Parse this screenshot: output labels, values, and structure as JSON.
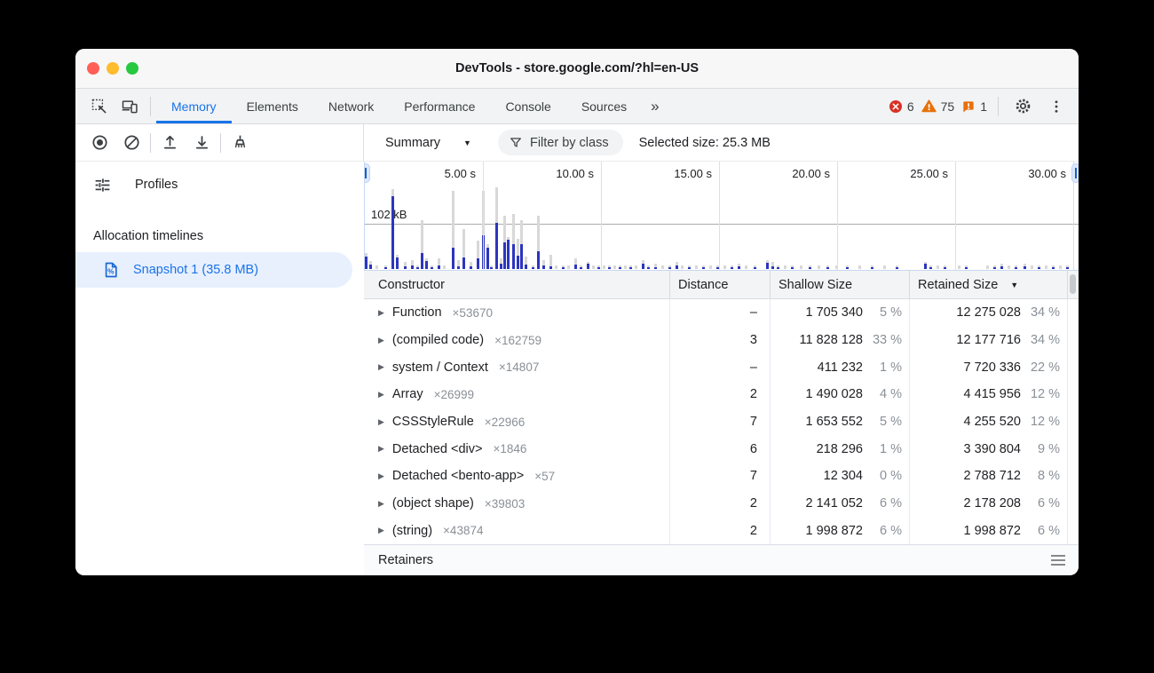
{
  "window": {
    "title": "DevTools - store.google.com/?hl=en-US"
  },
  "tabs": {
    "items": [
      {
        "label": "Memory",
        "active": true
      },
      {
        "label": "Elements",
        "active": false
      },
      {
        "label": "Network",
        "active": false
      },
      {
        "label": "Performance",
        "active": false
      },
      {
        "label": "Console",
        "active": false
      },
      {
        "label": "Sources",
        "active": false
      }
    ],
    "more_label": "»",
    "badges": {
      "errors": "6",
      "warnings": "75",
      "issues": "1"
    }
  },
  "toolbar": {
    "icons": [
      "record-icon",
      "clear-icon",
      "load-profile-icon",
      "save-profile-icon",
      "clear-all-profiles-icon"
    ],
    "mode_label": "Summary",
    "mode_caret": "▼",
    "filter_label": "Filter by class",
    "selected_size_label": "Selected size: 25.3 MB"
  },
  "sidebar": {
    "profiles_label": "Profiles",
    "section_label": "Allocation timelines",
    "snapshot_label": "Snapshot 1 (35.8 MB)"
  },
  "timeline": {
    "ticks": [
      "5.00 s",
      "10.00 s",
      "15.00 s",
      "20.00 s",
      "25.00 s",
      "30.00 s"
    ],
    "tick_spacing_px": 133,
    "y_gridline_label": "102 kB",
    "bars": [
      [
        0,
        18,
        14
      ],
      [
        5,
        9,
        5
      ],
      [
        12,
        4,
        0
      ],
      [
        22,
        4,
        2
      ],
      [
        30,
        90,
        82
      ],
      [
        35,
        16,
        13
      ],
      [
        44,
        8,
        3
      ],
      [
        52,
        10,
        4
      ],
      [
        58,
        4,
        2
      ],
      [
        63,
        55,
        18
      ],
      [
        68,
        12,
        9
      ],
      [
        74,
        4,
        2
      ],
      [
        82,
        12,
        4
      ],
      [
        88,
        4,
        0
      ],
      [
        98,
        88,
        24
      ],
      [
        104,
        10,
        3
      ],
      [
        110,
        45,
        13
      ],
      [
        118,
        8,
        3
      ],
      [
        126,
        32,
        12
      ],
      [
        132,
        88,
        38
      ],
      [
        137,
        28,
        24
      ],
      [
        141,
        4,
        2
      ],
      [
        147,
        92,
        52
      ],
      [
        152,
        12,
        6
      ],
      [
        156,
        60,
        30
      ],
      [
        160,
        36,
        33
      ],
      [
        166,
        62,
        28
      ],
      [
        171,
        34,
        15
      ],
      [
        175,
        55,
        28
      ],
      [
        180,
        14,
        5
      ],
      [
        188,
        4,
        2
      ],
      [
        194,
        60,
        20
      ],
      [
        200,
        10,
        4
      ],
      [
        208,
        16,
        3
      ],
      [
        214,
        4,
        0
      ],
      [
        222,
        4,
        2
      ],
      [
        228,
        4,
        0
      ],
      [
        236,
        12,
        5
      ],
      [
        242,
        4,
        2
      ],
      [
        250,
        8,
        6
      ],
      [
        256,
        4,
        0
      ],
      [
        262,
        4,
        2
      ],
      [
        268,
        4,
        0
      ],
      [
        274,
        4,
        2
      ],
      [
        280,
        4,
        0
      ],
      [
        286,
        4,
        2
      ],
      [
        292,
        4,
        0
      ],
      [
        298,
        4,
        2
      ],
      [
        304,
        4,
        0
      ],
      [
        312,
        10,
        6
      ],
      [
        318,
        4,
        2
      ],
      [
        326,
        6,
        2
      ],
      [
        334,
        4,
        0
      ],
      [
        342,
        4,
        2
      ],
      [
        350,
        8,
        4
      ],
      [
        356,
        4,
        0
      ],
      [
        364,
        4,
        2
      ],
      [
        372,
        4,
        0
      ],
      [
        380,
        4,
        2
      ],
      [
        388,
        4,
        0
      ],
      [
        396,
        4,
        2
      ],
      [
        404,
        4,
        0
      ],
      [
        412,
        4,
        2
      ],
      [
        420,
        6,
        3
      ],
      [
        428,
        4,
        0
      ],
      [
        438,
        4,
        2
      ],
      [
        452,
        10,
        7
      ],
      [
        458,
        8,
        3
      ],
      [
        464,
        4,
        2
      ],
      [
        472,
        4,
        0
      ],
      [
        480,
        4,
        2
      ],
      [
        490,
        4,
        0
      ],
      [
        500,
        4,
        2
      ],
      [
        510,
        4,
        0
      ],
      [
        520,
        4,
        2
      ],
      [
        530,
        4,
        0
      ],
      [
        542,
        4,
        2
      ],
      [
        556,
        4,
        0
      ],
      [
        570,
        4,
        2
      ],
      [
        584,
        4,
        0
      ],
      [
        598,
        4,
        2
      ],
      [
        630,
        8,
        6
      ],
      [
        636,
        4,
        2
      ],
      [
        644,
        4,
        0
      ],
      [
        652,
        4,
        2
      ],
      [
        668,
        4,
        0
      ],
      [
        676,
        4,
        2
      ],
      [
        700,
        4,
        0
      ],
      [
        708,
        4,
        2
      ],
      [
        716,
        6,
        3
      ],
      [
        724,
        4,
        0
      ],
      [
        732,
        4,
        2
      ],
      [
        742,
        6,
        3
      ],
      [
        750,
        4,
        0
      ],
      [
        758,
        4,
        2
      ],
      [
        766,
        4,
        0
      ],
      [
        774,
        4,
        2
      ],
      [
        782,
        4,
        0
      ],
      [
        790,
        4,
        2
      ]
    ]
  },
  "table": {
    "columns": [
      "Constructor",
      "Distance",
      "Shallow Size",
      "Retained Size"
    ],
    "sort_caret": "▼",
    "rows": [
      {
        "name": "Function",
        "count": "×53670",
        "distance": "–",
        "shallow": "1 705 340",
        "shallow_pct": "5 %",
        "retained": "12 275 028",
        "retained_pct": "34 %"
      },
      {
        "name": "(compiled code)",
        "count": "×162759",
        "distance": "3",
        "shallow": "11 828 128",
        "shallow_pct": "33 %",
        "retained": "12 177 716",
        "retained_pct": "34 %"
      },
      {
        "name": "system / Context",
        "count": "×14807",
        "distance": "–",
        "shallow": "411 232",
        "shallow_pct": "1 %",
        "retained": "7 720 336",
        "retained_pct": "22 %"
      },
      {
        "name": "Array",
        "count": "×26999",
        "distance": "2",
        "shallow": "1 490 028",
        "shallow_pct": "4 %",
        "retained": "4 415 956",
        "retained_pct": "12 %"
      },
      {
        "name": "CSSStyleRule",
        "count": "×22966",
        "distance": "7",
        "shallow": "1 653 552",
        "shallow_pct": "5 %",
        "retained": "4 255 520",
        "retained_pct": "12 %"
      },
      {
        "name": "Detached <div>",
        "count": "×1846",
        "distance": "6",
        "shallow": "218 296",
        "shallow_pct": "1 %",
        "retained": "3 390 804",
        "retained_pct": "9 %"
      },
      {
        "name": "Detached <bento-app>",
        "count": "×57",
        "distance": "7",
        "shallow": "12 304",
        "shallow_pct": "0 %",
        "retained": "2 788 712",
        "retained_pct": "8 %"
      },
      {
        "name": "(object shape)",
        "count": "×39803",
        "distance": "2",
        "shallow": "2 141 052",
        "shallow_pct": "6 %",
        "retained": "2 178 208",
        "retained_pct": "6 %"
      },
      {
        "name": "(string)",
        "count": "×43874",
        "distance": "2",
        "shallow": "1 998 872",
        "shallow_pct": "6 %",
        "retained": "1 998 872",
        "retained_pct": "6 %"
      }
    ]
  },
  "retainers": {
    "label": "Retainers"
  },
  "colors": {
    "accent": "#1a73e8",
    "selected_item_bg": "#e8f0fe",
    "bar_live": "#2c35be",
    "bar_total": "#d8d8d8",
    "error": "#d93025",
    "warning": "#e8710a"
  }
}
